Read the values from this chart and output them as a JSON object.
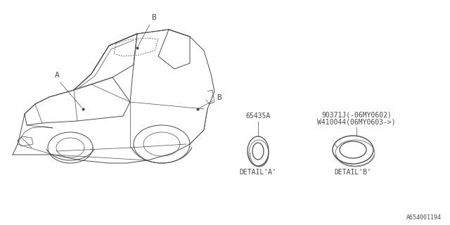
{
  "bg_color": "#ffffff",
  "line_color": "#4a4a4a",
  "text_color": "#4a4a4a",
  "catalog_number": "A654001194",
  "detail_a_label": "DETAIL'A'",
  "detail_b_label": "DETAIL'B'",
  "part_a_number": "65435A",
  "part_b_number_1": "90371J(-06MY0602)",
  "part_b_number_2": "W410044(06MY0603->)",
  "label_a": "A",
  "label_b": "B",
  "font_size_small": 7,
  "font_size_label": 8,
  "lw_main": 0.7,
  "lw_thin": 0.5
}
